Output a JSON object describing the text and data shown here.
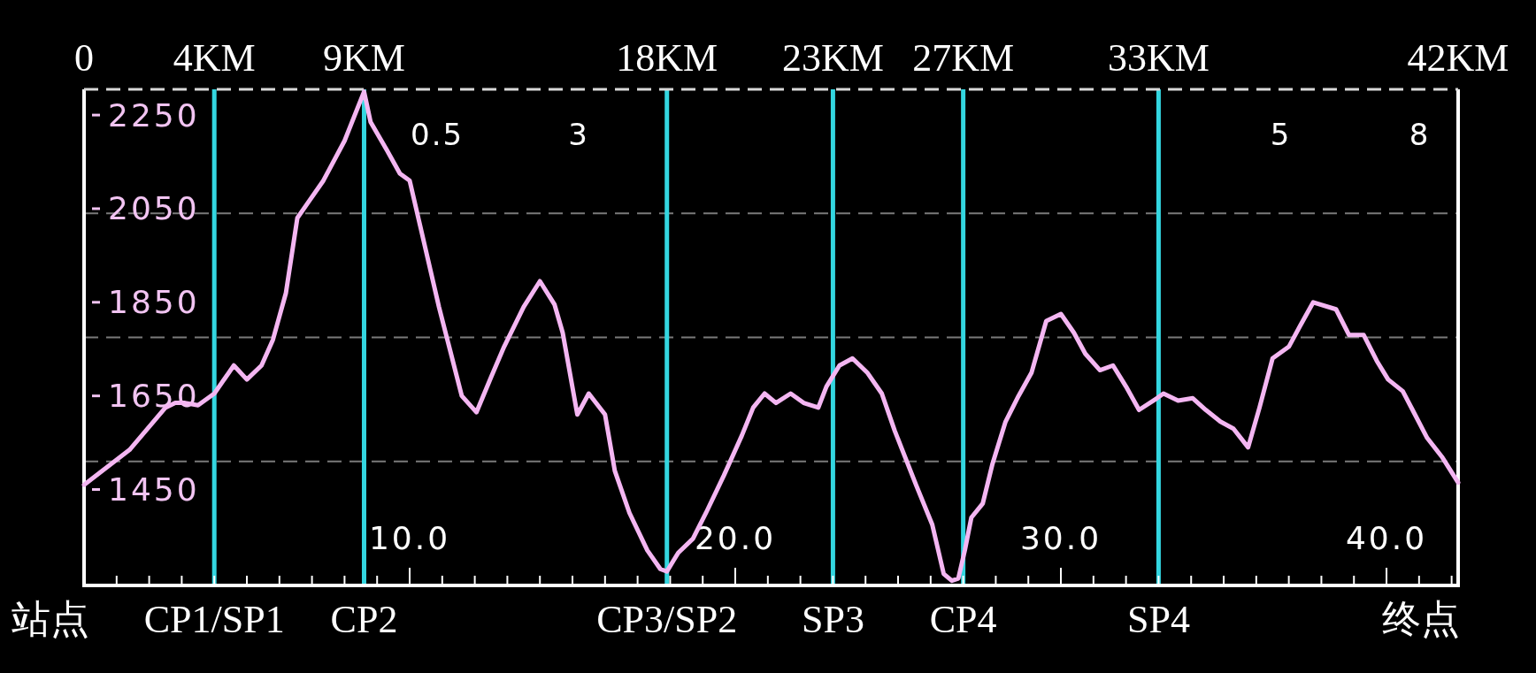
{
  "chart_data": {
    "type": "line",
    "x": [
      0,
      1.4,
      2.5,
      2.8,
      3.1,
      3.5,
      4.0,
      4.6,
      5.0,
      5.45,
      5.8,
      6.2,
      6.55,
      6.85,
      7.35,
      8.0,
      8.6,
      8.8,
      9.3,
      9.7,
      10.0,
      10.35,
      10.9,
      11.6,
      12.05,
      12.5,
      12.9,
      13.5,
      14.0,
      14.45,
      14.7,
      15.15,
      15.5,
      16.0,
      16.3,
      16.75,
      17.3,
      17.7,
      17.9,
      18.25,
      18.7,
      19.1,
      19.65,
      20.2,
      20.55,
      20.9,
      21.25,
      21.7,
      22.1,
      22.55,
      22.8,
      23.2,
      23.6,
      24.05,
      24.5,
      24.9,
      25.55,
      26.05,
      26.4,
      26.65,
      26.85,
      27.05,
      27.25,
      27.6,
      27.9,
      28.3,
      28.7,
      29.1,
      29.55,
      30.0,
      30.4,
      30.75,
      31.2,
      31.6,
      32.0,
      32.4,
      32.95,
      33.15,
      33.6,
      34.05,
      34.45,
      34.9,
      35.3,
      35.75,
      36.1,
      36.5,
      37.0,
      37.35,
      37.75,
      38.45,
      38.85,
      39.3,
      39.7,
      40.05,
      40.5,
      40.8,
      41.25,
      41.7,
      42.2
    ],
    "series": [
      {
        "color": "#f4b6f2",
        "values": [
          1460,
          1535,
          1625,
          1635,
          1635,
          1630,
          1655,
          1715,
          1685,
          1715,
          1770,
          1870,
          2030,
          2060,
          2110,
          2195,
          2300,
          2235,
          2175,
          2125,
          2110,
          2005,
          1840,
          1650,
          1615,
          1690,
          1755,
          1840,
          1895,
          1845,
          1785,
          1610,
          1655,
          1610,
          1490,
          1400,
          1320,
          1280,
          1275,
          1315,
          1345,
          1400,
          1480,
          1565,
          1625,
          1655,
          1635,
          1655,
          1635,
          1625,
          1670,
          1715,
          1730,
          1700,
          1655,
          1575,
          1460,
          1375,
          1270,
          1255,
          1260,
          1320,
          1390,
          1420,
          1505,
          1595,
          1650,
          1700,
          1810,
          1825,
          1785,
          1740,
          1705,
          1715,
          1670,
          1620,
          1645,
          1655,
          1640,
          1645,
          1620,
          1595,
          1580,
          1540,
          1625,
          1730,
          1755,
          1800,
          1850,
          1835,
          1780,
          1780,
          1725,
          1685,
          1660,
          1620,
          1560,
          1520,
          1465
        ]
      }
    ],
    "xlim": [
      0,
      42.2
    ],
    "xticks": [
      {
        "value": 1,
        "label": null
      },
      {
        "value": 2,
        "label": null
      },
      {
        "value": 3,
        "label": null
      },
      {
        "value": 4,
        "label": null
      },
      {
        "value": 5,
        "label": null
      },
      {
        "value": 6,
        "label": null
      },
      {
        "value": 7,
        "label": null
      },
      {
        "value": 8,
        "label": null
      },
      {
        "value": 9,
        "label": null
      },
      {
        "value": 10,
        "label": "10.0"
      },
      {
        "value": 11,
        "label": null
      },
      {
        "value": 12,
        "label": null
      },
      {
        "value": 13,
        "label": null
      },
      {
        "value": 14,
        "label": null
      },
      {
        "value": 15,
        "label": null
      },
      {
        "value": 16,
        "label": null
      },
      {
        "value": 17,
        "label": null
      },
      {
        "value": 18,
        "label": null
      },
      {
        "value": 19,
        "label": null
      },
      {
        "value": 20,
        "label": "20.0"
      },
      {
        "value": 21,
        "label": null
      },
      {
        "value": 22,
        "label": null
      },
      {
        "value": 23,
        "label": null
      },
      {
        "value": 24,
        "label": null
      },
      {
        "value": 25,
        "label": null
      },
      {
        "value": 26,
        "label": null
      },
      {
        "value": 27,
        "label": null
      },
      {
        "value": 28,
        "label": null
      },
      {
        "value": 29,
        "label": null
      },
      {
        "value": 30,
        "label": "30.0"
      },
      {
        "value": 31,
        "label": null
      },
      {
        "value": 32,
        "label": null
      },
      {
        "value": 33,
        "label": null
      },
      {
        "value": 34,
        "label": null
      },
      {
        "value": 35,
        "label": null
      },
      {
        "value": 36,
        "label": null
      },
      {
        "value": 37,
        "label": null
      },
      {
        "value": 38,
        "label": null
      },
      {
        "value": 39,
        "label": null
      },
      {
        "value": 40,
        "label": "40.0"
      },
      {
        "value": 41,
        "label": null
      },
      {
        "value": 42,
        "label": null
      }
    ],
    "x2lim": [
      0,
      42.2
    ],
    "x2ticks": [
      0,
      {
        "value": 4,
        "label": "4KM"
      },
      {
        "value": 8.6,
        "label": "9KM"
      },
      {
        "value": 17.9,
        "label": "18KM"
      },
      {
        "value": 23,
        "label": "23KM"
      },
      {
        "value": 27,
        "label": "27KM"
      },
      {
        "value": 33,
        "label": "33KM"
      },
      {
        "value": 42.2,
        "label": "42KM"
      }
    ],
    "ylim": [
      1245,
      2305
    ],
    "yticks": [
      1450,
      1650,
      1850,
      2050,
      2250
    ],
    "ref_lines": [
      {
        "axis": "y",
        "value": 1510,
        "color": "#7a7a7a",
        "line_style": "dashed"
      },
      {
        "axis": "y",
        "value": 1775,
        "color": "#7a7a7a",
        "line_style": "dashed"
      },
      {
        "axis": "y",
        "value": 2040,
        "color": "#7a7a7a",
        "line_style": "dashed"
      },
      {
        "axis": "x",
        "value": 4,
        "label": "CP1/SP1",
        "color": "#33d6e0"
      },
      {
        "axis": "x",
        "value": 8.6,
        "label": "CP2",
        "color": "#33d6e0"
      },
      {
        "axis": "x",
        "value": 17.9,
        "label": "CP3/SP2",
        "color": "#33d6e0"
      },
      {
        "axis": "x",
        "value": 23,
        "label": "SP3",
        "color": "#33d6e0"
      },
      {
        "axis": "x",
        "value": 27,
        "label": "CP4",
        "color": "#33d6e0"
      },
      {
        "axis": "x",
        "value": 33,
        "label": "SP4",
        "color": "#33d6e0"
      }
    ],
    "annotations": [
      "0.5",
      "3",
      "5",
      "8",
      "站点",
      "终点"
    ]
  }
}
